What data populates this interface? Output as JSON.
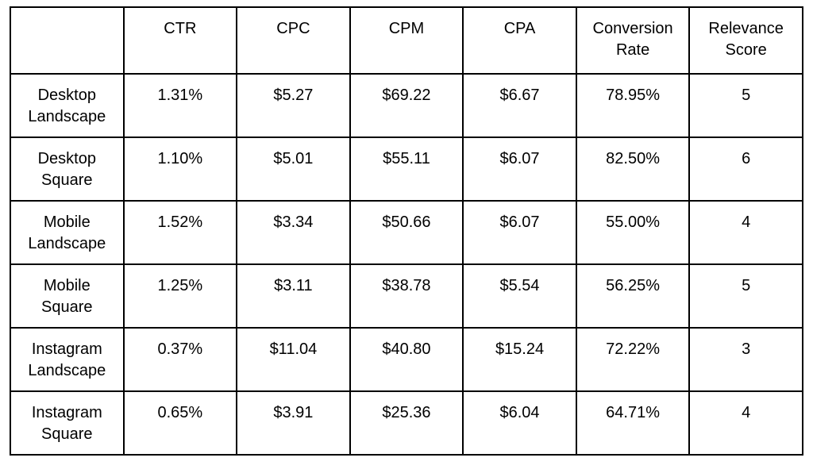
{
  "colors": {
    "background": "#ffffff",
    "border": "#000000",
    "text": "#000000"
  },
  "chart_data": {
    "type": "table",
    "columns": [
      "",
      "CTR",
      "CPC",
      "CPM",
      "CPA",
      "Conversion Rate",
      "Relevance Score"
    ],
    "rows": [
      [
        "Desktop Landscape",
        "1.31%",
        "$5.27",
        "$69.22",
        "$6.67",
        "78.95%",
        "5"
      ],
      [
        "Desktop Square",
        "1.10%",
        "$5.01",
        "$55.11",
        "$6.07",
        "82.50%",
        "6"
      ],
      [
        "Mobile Landscape",
        "1.52%",
        "$3.34",
        "$50.66",
        "$6.07",
        "55.00%",
        "4"
      ],
      [
        "Mobile Square",
        "1.25%",
        "$3.11",
        "$38.78",
        "$5.54",
        "56.25%",
        "5"
      ],
      [
        "Instagram Landscape",
        "0.37%",
        "$11.04",
        "$40.80",
        "$15.24",
        "72.22%",
        "3"
      ],
      [
        "Instagram Square",
        "0.65%",
        "$3.91",
        "$25.36",
        "$6.04",
        "64.71%",
        "4"
      ]
    ]
  }
}
